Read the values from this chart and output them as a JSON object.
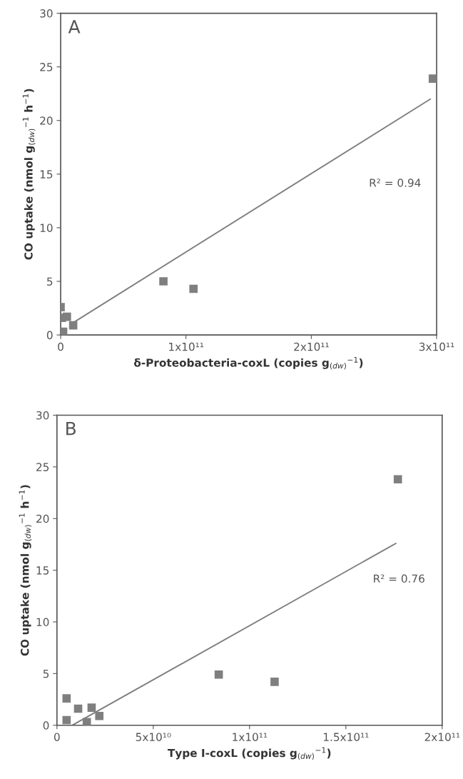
{
  "chart_data": [
    {
      "type": "scatter",
      "title": "A",
      "xlabel": "δ-Proteobacteria-coxL (copies g$_{(dw)}$$^{−1}$)",
      "ylabel": "CO uptake (nmol g$_{(dw)}$$^{−1}$ h$^{−1}$)",
      "xlim": [
        0,
        300000000000.0
      ],
      "ylim": [
        0,
        30
      ],
      "xticks": [
        0,
        {
          "value": 100000000000.0,
          "label": "1x10¹¹"
        },
        {
          "value": 200000000000.0,
          "label": "2x10¹¹"
        },
        {
          "value": 300000000000.0,
          "label": "3x10¹¹"
        }
      ],
      "yticks": [
        0,
        5,
        10,
        15,
        20,
        25,
        30
      ],
      "grid": false,
      "legend": false,
      "marker": "square",
      "series": [
        {
          "color": "#7f7f7f",
          "x": [
            0,
            1000000000.0,
            5000000000.0,
            10000000000.0,
            2000000000.0,
            82000000000.0,
            106000000000.0,
            297000000000.0
          ],
          "values": [
            2.6,
            1.6,
            1.7,
            0.9,
            0.3,
            5.0,
            4.3,
            23.9
          ]
        },
        {
          "type": "line",
          "marker": "none",
          "color": "#7f7f7f",
          "x": [
            8000000000.0,
            295000000000.0
          ],
          "values": [
            1.0,
            22.0
          ]
        }
      ],
      "annotations": [
        "R² = 0.94"
      ]
    },
    {
      "type": "scatter",
      "title": "B",
      "xlabel": "Type I-coxL (copies g$_{(dw)}$$^{−1}$)",
      "ylabel": "CO uptake (nmol g$_{(dw)}$$^{−1}$ h$^{−1}$)",
      "xlim": [
        0,
        200000000000.0
      ],
      "ylim": [
        0,
        30
      ],
      "xticks": [
        0,
        {
          "value": 50000000000.0,
          "label": "5x10¹⁰"
        },
        {
          "value": 100000000000.0,
          "label": "1x10¹¹"
        },
        {
          "value": 150000000000.0,
          "label": "1.5x10¹¹"
        },
        {
          "value": 200000000000.0,
          "label": "2x10¹¹"
        }
      ],
      "yticks": [
        0,
        5,
        10,
        15,
        20,
        25,
        30
      ],
      "grid": false,
      "legend": false,
      "marker": "square",
      "series": [
        {
          "color": "#7f7f7f",
          "x": [
            5000000000.0,
            5000000000.0,
            11000000000.0,
            18000000000.0,
            15500000000.0,
            22000000000.0,
            84000000000.0,
            113000000000.0,
            177000000000.0
          ],
          "values": [
            2.6,
            0.5,
            1.6,
            1.7,
            0.3,
            0.9,
            4.9,
            4.2,
            23.8
          ]
        },
        {
          "type": "line",
          "marker": "none",
          "color": "#7f7f7f",
          "x": [
            8000000000.0,
            176000000000.0
          ],
          "values": [
            0,
            17.6
          ]
        }
      ],
      "annotations": [
        "R² = 0.76"
      ]
    }
  ]
}
